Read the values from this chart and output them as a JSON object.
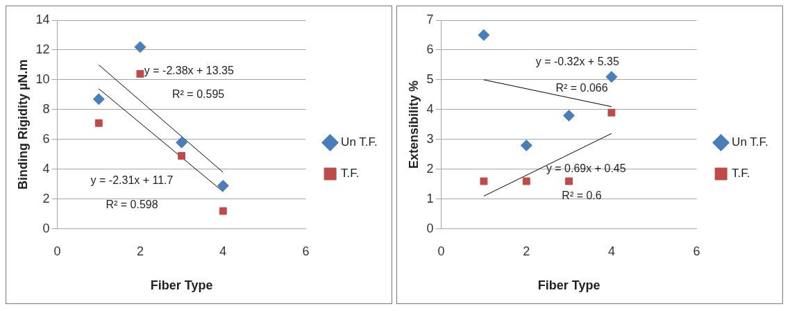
{
  "chart_data": [
    {
      "type": "scatter",
      "xlabel": "Fiber Type",
      "ylabel": "Binding Rigidity µN.m",
      "xlim": [
        0,
        6
      ],
      "xticks": [
        0,
        2,
        4,
        6
      ],
      "ylim": [
        0,
        14
      ],
      "yticks": [
        0,
        2,
        4,
        6,
        8,
        10,
        12,
        14
      ],
      "grid": "y",
      "legend": "right",
      "series": [
        {
          "name": "Un T.F.",
          "type": "scatter",
          "marker": "diamond",
          "color": "#4a7ebb",
          "x": [
            1,
            2,
            3,
            4
          ],
          "values": [
            8.7,
            12.2,
            5.8,
            2.9
          ]
        },
        {
          "name": "T.F.",
          "type": "scatter",
          "marker": "square",
          "color": "#be4b48",
          "x": [
            1,
            2,
            3,
            4
          ],
          "values": [
            7.1,
            10.4,
            4.9,
            1.2
          ]
        },
        {
          "type": "line",
          "marker": "none",
          "color": "#000000",
          "x": [
            1,
            4
          ],
          "values": [
            11.0,
            3.8
          ]
        },
        {
          "type": "line",
          "marker": "none",
          "color": "#000000",
          "x": [
            1,
            4
          ],
          "values": [
            9.4,
            2.5
          ]
        }
      ],
      "annotations": [
        "y = -2.38x + 13.35",
        "R² = 0.595",
        "y = -2.31x + 11.7",
        "R² = 0.598"
      ]
    },
    {
      "type": "scatter",
      "xlabel": "Fiber Type",
      "ylabel": "Extensibility %",
      "xlim": [
        0,
        6
      ],
      "xticks": [
        0,
        2,
        4,
        6
      ],
      "ylim": [
        0,
        7
      ],
      "yticks": [
        0,
        1,
        2,
        3,
        4,
        5,
        6,
        7
      ],
      "grid": "y",
      "legend": "right",
      "series": [
        {
          "name": "Un T.F.",
          "type": "scatter",
          "marker": "diamond",
          "color": "#4a7ebb",
          "x": [
            1,
            2,
            3,
            4
          ],
          "values": [
            6.5,
            2.8,
            3.8,
            5.1
          ]
        },
        {
          "name": "T.F.",
          "type": "scatter",
          "marker": "square",
          "color": "#be4b48",
          "x": [
            1,
            2,
            3,
            4
          ],
          "values": [
            1.6,
            1.6,
            1.6,
            3.9
          ]
        },
        {
          "type": "line",
          "marker": "none",
          "color": "#000000",
          "x": [
            1,
            4
          ],
          "values": [
            5.0,
            4.1
          ]
        },
        {
          "type": "line",
          "marker": "none",
          "color": "#000000",
          "x": [
            1,
            4
          ],
          "values": [
            1.1,
            3.2
          ]
        }
      ],
      "annotations": [
        "y = -0.32x + 5.35",
        "R² = 0.066",
        "y = 0.69x + 0.45",
        "R² = 0.6"
      ]
    }
  ]
}
